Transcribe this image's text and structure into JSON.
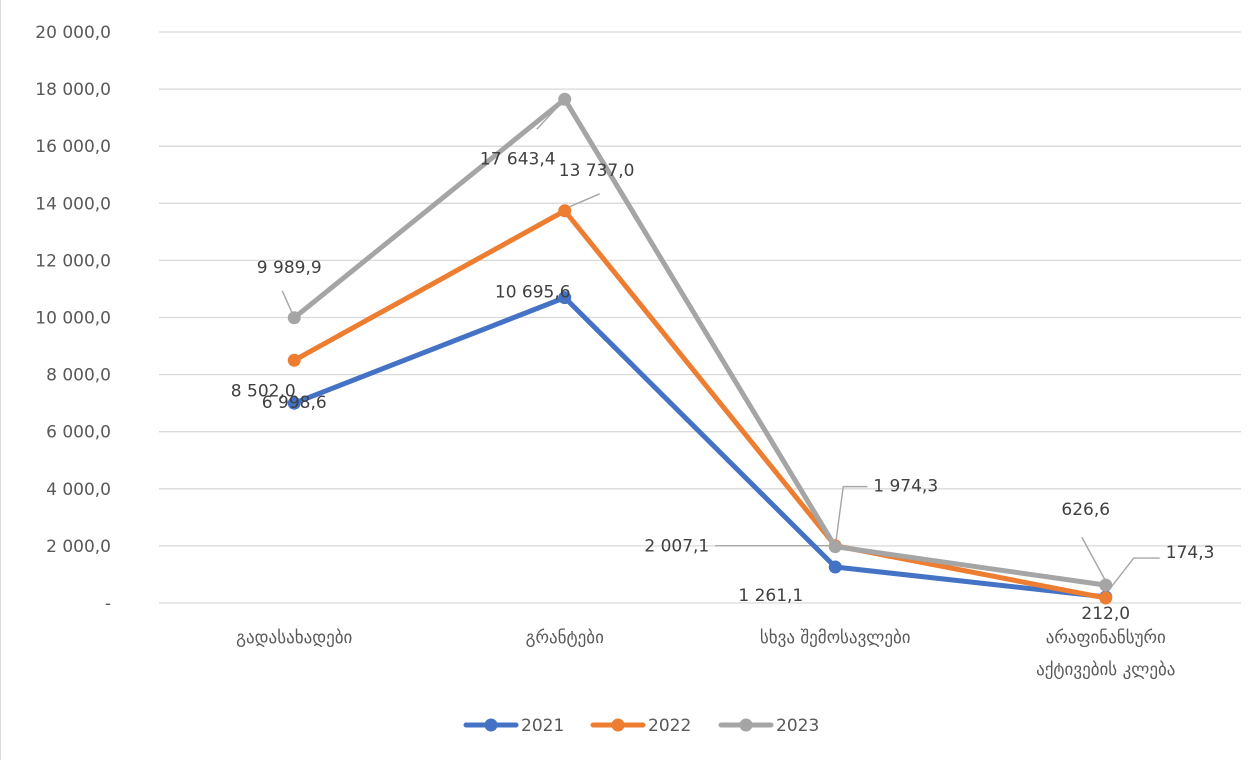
{
  "chart_data": {
    "type": "line",
    "categories": [
      [
        "გადასახადები"
      ],
      [
        "გრანტები"
      ],
      [
        "სხვა შემოსავლები"
      ],
      [
        "არაფინანსური",
        "აქტივების კლება"
      ]
    ],
    "series": [
      {
        "name": "2021",
        "color": "#4472c4",
        "values": [
          6998.6,
          10695.6,
          1261.1,
          212.0
        ],
        "labels": [
          "6 998,6",
          "10 695,6",
          "1 261,1",
          "212,0"
        ]
      },
      {
        "name": "2022",
        "color": "#ed7d31",
        "values": [
          8502.0,
          13737.0,
          2007.1,
          174.3
        ],
        "labels": [
          "8 502,0",
          "13 737,0",
          "2 007,1",
          "174,3"
        ]
      },
      {
        "name": "2023",
        "color": "#a5a5a5",
        "values": [
          9989.9,
          17643.4,
          1974.3,
          626.6
        ],
        "labels": [
          "9 989,9",
          "17 643,4",
          "1 974,3",
          "626,6"
        ]
      }
    ],
    "ylim": [
      0,
      20000
    ],
    "y_ticks": [
      {
        "value": 0,
        "label": "-"
      },
      {
        "value": 2000,
        "label": "2 000,0"
      },
      {
        "value": 4000,
        "label": "4 000,0"
      },
      {
        "value": 6000,
        "label": "6 000,0"
      },
      {
        "value": 8000,
        "label": "8 000,0"
      },
      {
        "value": 10000,
        "label": "10 000,0"
      },
      {
        "value": 12000,
        "label": "12 000,0"
      },
      {
        "value": 14000,
        "label": "14 000,0"
      },
      {
        "value": 16000,
        "label": "16 000,0"
      },
      {
        "value": 18000,
        "label": "18 000,0"
      },
      {
        "value": 20000,
        "label": "20 000,0"
      }
    ],
    "grid": true,
    "legend_position": "bottom",
    "gridline_color": "#d9d9d9"
  }
}
